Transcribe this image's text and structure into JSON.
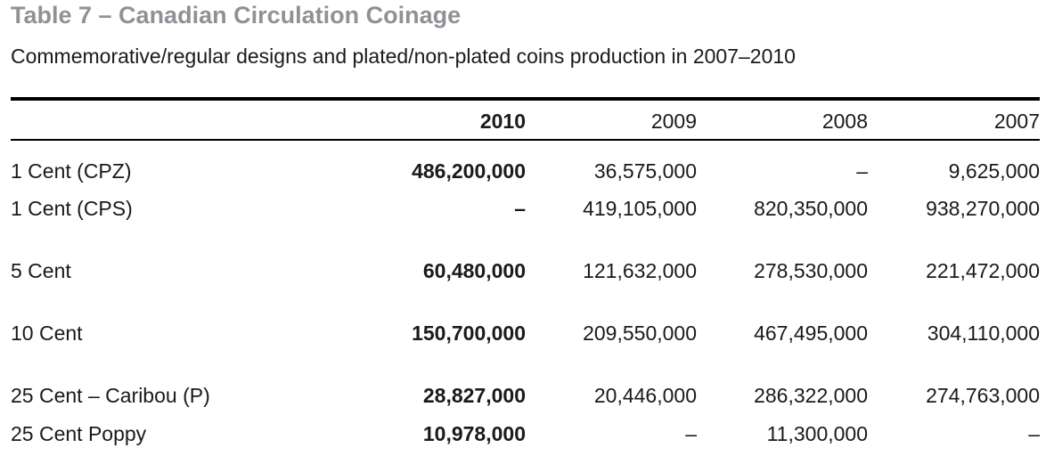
{
  "title": "Table 7 – Canadian Circulation Coinage",
  "subtitle": "Commemorative/regular designs and plated/non-plated coins production in 2007–2010",
  "columns": [
    "2010",
    "2009",
    "2008",
    "2007"
  ],
  "rows": [
    {
      "label": "1 Cent (CPZ)",
      "v2010": "486,200,000",
      "v2009": "36,575,000",
      "v2008": "–",
      "v2007": "9,625,000"
    },
    {
      "label": "1 Cent (CPS)",
      "v2010": "–",
      "v2009": "419,105,000",
      "v2008": "820,350,000",
      "v2007": "938,270,000"
    },
    {
      "label": "5 Cent",
      "v2010": "60,480,000",
      "v2009": "121,632,000",
      "v2008": "278,530,000",
      "v2007": "221,472,000"
    },
    {
      "label": "10 Cent",
      "v2010": "150,700,000",
      "v2009": "209,550,000",
      "v2008": "467,495,000",
      "v2007": "304,110,000"
    },
    {
      "label": "25 Cent – Caribou (P)",
      "v2010": "28,827,000",
      "v2009": "20,446,000",
      "v2008": "286,322,000",
      "v2007": "274,763,000"
    },
    {
      "label": "25 Cent Poppy",
      "v2010": "10,978,000",
      "v2009": "–",
      "v2008": "11,300,000",
      "v2007": "–"
    }
  ]
}
